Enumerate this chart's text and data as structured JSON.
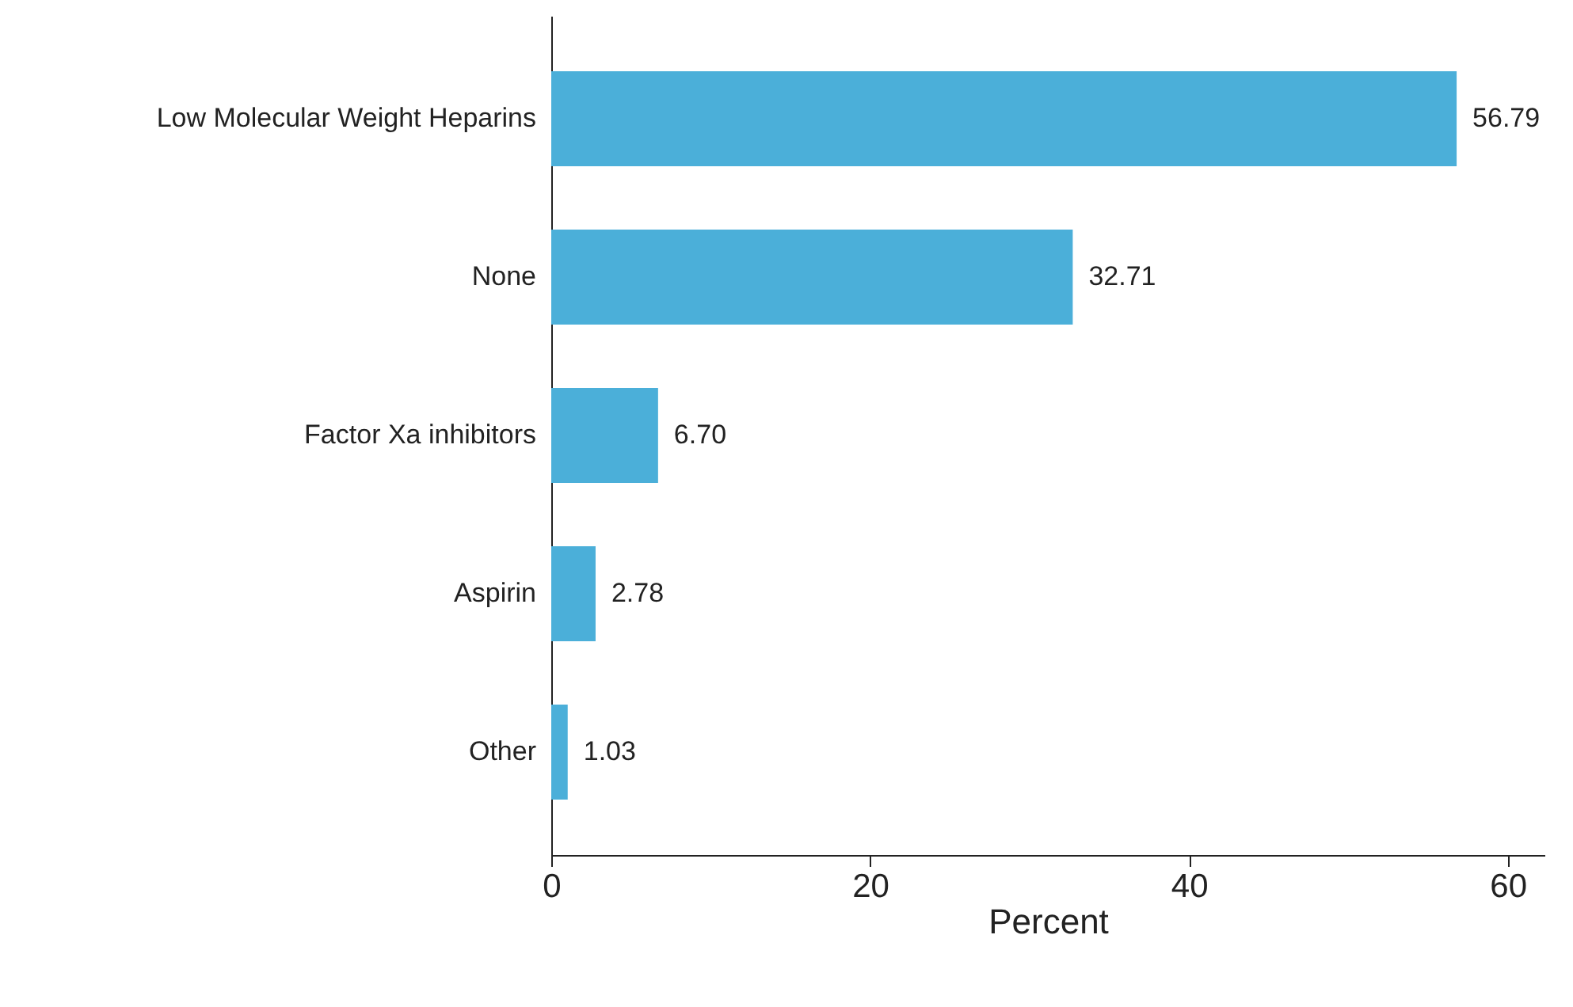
{
  "chart_data": {
    "type": "bar",
    "orientation": "horizontal",
    "xlabel": "Percent",
    "categories": [
      "Low Molecular Weight Heparins",
      "None",
      "Factor Xa inhibitors",
      "Aspirin",
      "Other"
    ],
    "values": [
      56.79,
      32.71,
      6.7,
      2.78,
      1.03
    ],
    "color": "#4bafd9",
    "xlim": [
      0,
      62.3
    ],
    "xticks": [
      0,
      20,
      40,
      60
    ],
    "grid": false,
    "value_labels": [
      "56.79",
      "32.71",
      "6.70",
      "2.78",
      "1.03"
    ]
  }
}
